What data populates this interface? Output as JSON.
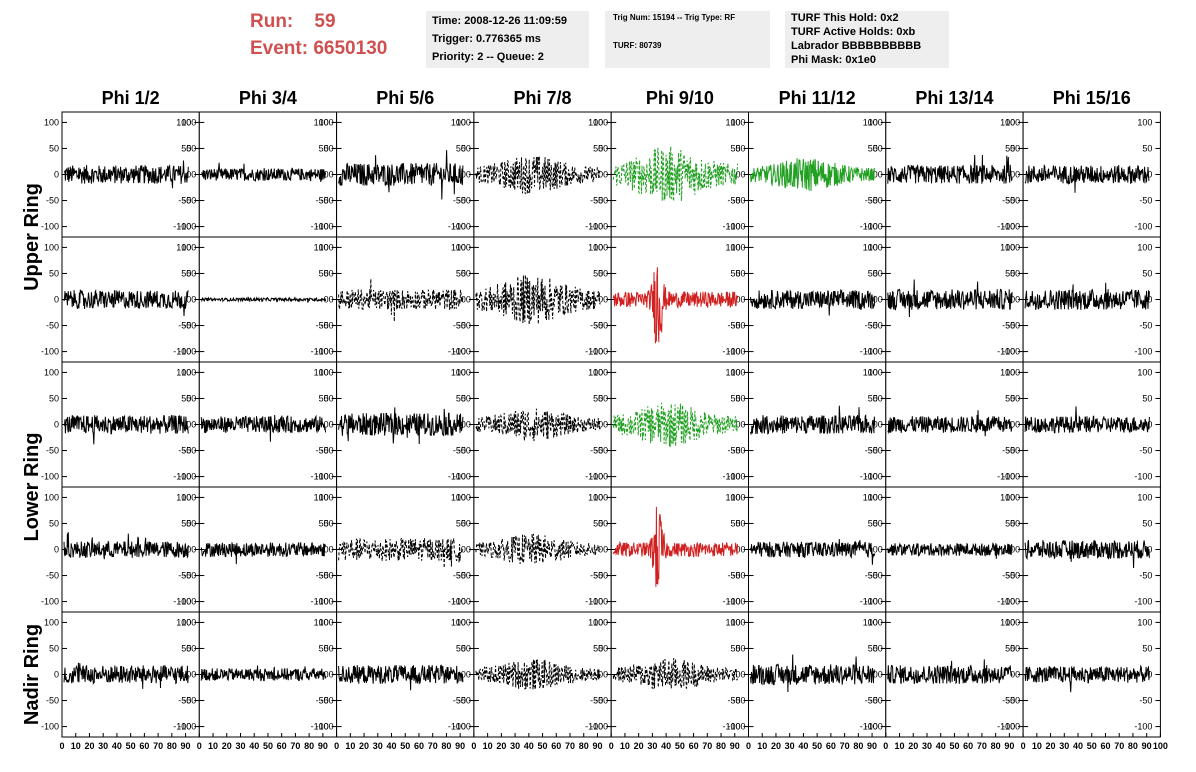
{
  "run": {
    "run_label": "Run:",
    "run_value": "59",
    "event_label": "Event:",
    "event_value": "6650130"
  },
  "info_box_1": [
    "Time: 2008-12-26 11:09:59",
    "Trigger: 0.776365 ms",
    "Priority: 2 -- Queue: 2"
  ],
  "info_box_2": [
    "Trig Num: 15194 -- Trig Type: RF",
    "TURF: 80739"
  ],
  "info_box_3": [
    "TURF This Hold: 0x2",
    "TURF Active Holds: 0xb",
    "Labrador BBBBBBBBBB",
    "Phi Mask: 0x1e0"
  ],
  "colors": {
    "run_text": "#d05050",
    "info_bg": "#eeeeee",
    "trace_default": "#000000",
    "trace_green": "#22a022",
    "trace_red": "#d02020"
  },
  "chart_data": {
    "type": "line",
    "columns": [
      "Phi 1/2",
      "Phi 3/4",
      "Phi 5/6",
      "Phi 7/8",
      "Phi 9/10",
      "Phi 11/12",
      "Phi 13/14",
      "Phi 15/16"
    ],
    "row_groups": [
      {
        "label": "Upper Ring",
        "rows": [
          0,
          1
        ]
      },
      {
        "label": "Lower Ring",
        "rows": [
          2,
          3
        ]
      },
      {
        "label": "Nadir Ring",
        "rows": [
          4
        ]
      }
    ],
    "ylim": [
      -120,
      120
    ],
    "y_ticks": [
      -100,
      -50,
      0,
      50,
      100
    ],
    "x_range": [
      0,
      100
    ],
    "x_tick_labels": [
      "0",
      "10",
      "20",
      "30",
      "40",
      "50",
      "60",
      "70",
      "80",
      "90",
      "100"
    ],
    "panels": [
      [
        {
          "style": "solid",
          "color": "black",
          "amp": 18,
          "env": "flat"
        },
        {
          "style": "solid",
          "color": "black",
          "amp": 12,
          "env": "flat"
        },
        {
          "style": "solid",
          "color": "black",
          "amp": 22,
          "env": "flat"
        },
        {
          "style": "dashed",
          "color": "black",
          "amp": 35,
          "env": "mid"
        },
        {
          "style": "dashed",
          "color": "green",
          "amp": 50,
          "env": "mid"
        },
        {
          "style": "solid",
          "color": "green",
          "amp": 30,
          "env": "mid"
        },
        {
          "style": "solid",
          "color": "black",
          "amp": 18,
          "env": "flat"
        },
        {
          "style": "solid",
          "color": "black",
          "amp": 18,
          "env": "flat"
        }
      ],
      [
        {
          "style": "solid",
          "color": "black",
          "amp": 18,
          "env": "flat"
        },
        {
          "style": "solid",
          "color": "black",
          "amp": 3,
          "env": "flat"
        },
        {
          "style": "dashed",
          "color": "black",
          "amp": 20,
          "env": "flat"
        },
        {
          "style": "dashed",
          "color": "black",
          "amp": 45,
          "env": "mid"
        },
        {
          "style": "solid",
          "color": "red",
          "amp": 28,
          "env": "spike"
        },
        {
          "style": "solid",
          "color": "black",
          "amp": 18,
          "env": "flat"
        },
        {
          "style": "solid",
          "color": "black",
          "amp": 20,
          "env": "flat"
        },
        {
          "style": "solid",
          "color": "black",
          "amp": 20,
          "env": "flat"
        }
      ],
      [
        {
          "style": "solid",
          "color": "black",
          "amp": 18,
          "env": "flat"
        },
        {
          "style": "solid",
          "color": "black",
          "amp": 16,
          "env": "flat"
        },
        {
          "style": "solid",
          "color": "black",
          "amp": 22,
          "env": "flat"
        },
        {
          "style": "dashed",
          "color": "black",
          "amp": 30,
          "env": "mid"
        },
        {
          "style": "dashed",
          "color": "green",
          "amp": 40,
          "env": "mid"
        },
        {
          "style": "solid",
          "color": "black",
          "amp": 18,
          "env": "flat"
        },
        {
          "style": "solid",
          "color": "black",
          "amp": 16,
          "env": "flat"
        },
        {
          "style": "solid",
          "color": "black",
          "amp": 16,
          "env": "flat"
        }
      ],
      [
        {
          "style": "solid",
          "color": "black",
          "amp": 16,
          "env": "flat"
        },
        {
          "style": "solid",
          "color": "black",
          "amp": 14,
          "env": "flat"
        },
        {
          "style": "dashed",
          "color": "black",
          "amp": 22,
          "env": "flat"
        },
        {
          "style": "dashed",
          "color": "black",
          "amp": 28,
          "env": "mid"
        },
        {
          "style": "solid",
          "color": "red",
          "amp": 25,
          "env": "spike"
        },
        {
          "style": "solid",
          "color": "black",
          "amp": 15,
          "env": "flat"
        },
        {
          "style": "solid",
          "color": "black",
          "amp": 12,
          "env": "flat"
        },
        {
          "style": "solid",
          "color": "black",
          "amp": 18,
          "env": "flat"
        }
      ],
      [
        {
          "style": "solid",
          "color": "black",
          "amp": 18,
          "env": "flat"
        },
        {
          "style": "solid",
          "color": "black",
          "amp": 12,
          "env": "flat"
        },
        {
          "style": "solid",
          "color": "black",
          "amp": 18,
          "env": "flat"
        },
        {
          "style": "dashed",
          "color": "black",
          "amp": 28,
          "env": "mid"
        },
        {
          "style": "dashed",
          "color": "black",
          "amp": 30,
          "env": "mid"
        },
        {
          "style": "solid",
          "color": "black",
          "amp": 20,
          "env": "flat"
        },
        {
          "style": "solid",
          "color": "black",
          "amp": 18,
          "env": "flat"
        },
        {
          "style": "solid",
          "color": "black",
          "amp": 16,
          "env": "flat"
        }
      ]
    ]
  }
}
